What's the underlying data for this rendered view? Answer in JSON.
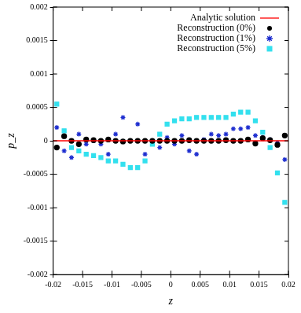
{
  "chart_data": {
    "type": "scatter",
    "x_label": "z",
    "y_label": "p_z",
    "xlim": [
      -0.02,
      0.02
    ],
    "xticks": [
      -0.02,
      -0.015,
      -0.01,
      -0.005,
      0,
      0.005,
      0.01,
      0.015,
      0.02
    ],
    "ylim": [
      -0.002,
      0.002
    ],
    "yticks": [
      -0.002,
      -0.0015,
      -0.001,
      -0.0005,
      0,
      0.0005,
      0.001,
      0.0015,
      0.002
    ],
    "grid": false,
    "legend": "top right",
    "x": [
      -0.01938,
      -0.01813,
      -0.01688,
      -0.01563,
      -0.01438,
      -0.01313,
      -0.01188,
      -0.01063,
      -0.00938,
      -0.00813,
      -0.00688,
      -0.00563,
      -0.00438,
      -0.00313,
      -0.00188,
      -0.00063,
      0.00063,
      0.00188,
      0.00313,
      0.00438,
      0.00563,
      0.00688,
      0.00813,
      0.00938,
      0.01063,
      0.01188,
      0.01313,
      0.01438,
      0.01563,
      0.01688,
      0.01813,
      0.01938
    ],
    "series": [
      {
        "name": "Analytic solution",
        "type": "line",
        "color": "#ff0000",
        "line_style": "solid",
        "x": [
          -0.02,
          0.02
        ],
        "values": [
          0,
          0
        ]
      },
      {
        "name": "Reconstruction (0%)",
        "type": "scatter",
        "color": "#000000",
        "marker": "circle",
        "values": [
          -0.0001,
          7e-05,
          0,
          -5e-05,
          2e-05,
          1e-05,
          0,
          2e-05,
          0,
          -1e-05,
          0,
          0,
          0,
          0,
          0,
          0,
          0,
          0,
          1e-05,
          0,
          0,
          0,
          0,
          1e-05,
          0,
          0,
          2e-05,
          -4e-05,
          4e-05,
          1e-05,
          -6e-05,
          8e-05
        ]
      },
      {
        "name": "Reconstruction (1%)",
        "type": "scatter",
        "color": "#1f2fd0",
        "marker": "star",
        "values": [
          0.0002,
          -0.00015,
          -0.00025,
          0.0001,
          -5e-05,
          0,
          -5e-05,
          -0.0002,
          0.0001,
          0.00035,
          0,
          0.00025,
          -0.0002,
          0,
          -0.0001,
          5e-05,
          -5e-05,
          8e-05,
          -0.00015,
          -0.0002,
          2e-05,
          0.0001,
          8e-05,
          0.0001,
          0.00018,
          0.00018,
          0.0002,
          8e-05,
          5e-05,
          2e-05,
          -3e-05,
          -0.00028
        ]
      },
      {
        "name": "Reconstruction (5%)",
        "type": "scatter",
        "color": "#33e0ee",
        "marker": "square",
        "values": [
          0.00055,
          0.00015,
          -0.0001,
          -0.00015,
          -0.0002,
          -0.00022,
          -0.00025,
          -0.0003,
          -0.0003,
          -0.00035,
          -0.0004,
          -0.0004,
          -0.0003,
          -5e-05,
          0.0001,
          0.00025,
          0.0003,
          0.00033,
          0.00033,
          0.00035,
          0.00035,
          0.00035,
          0.00035,
          0.00035,
          0.0004,
          0.00043,
          0.00043,
          0.0003,
          0.00013,
          -0.0001,
          -0.00048,
          -0.00092
        ]
      }
    ]
  }
}
